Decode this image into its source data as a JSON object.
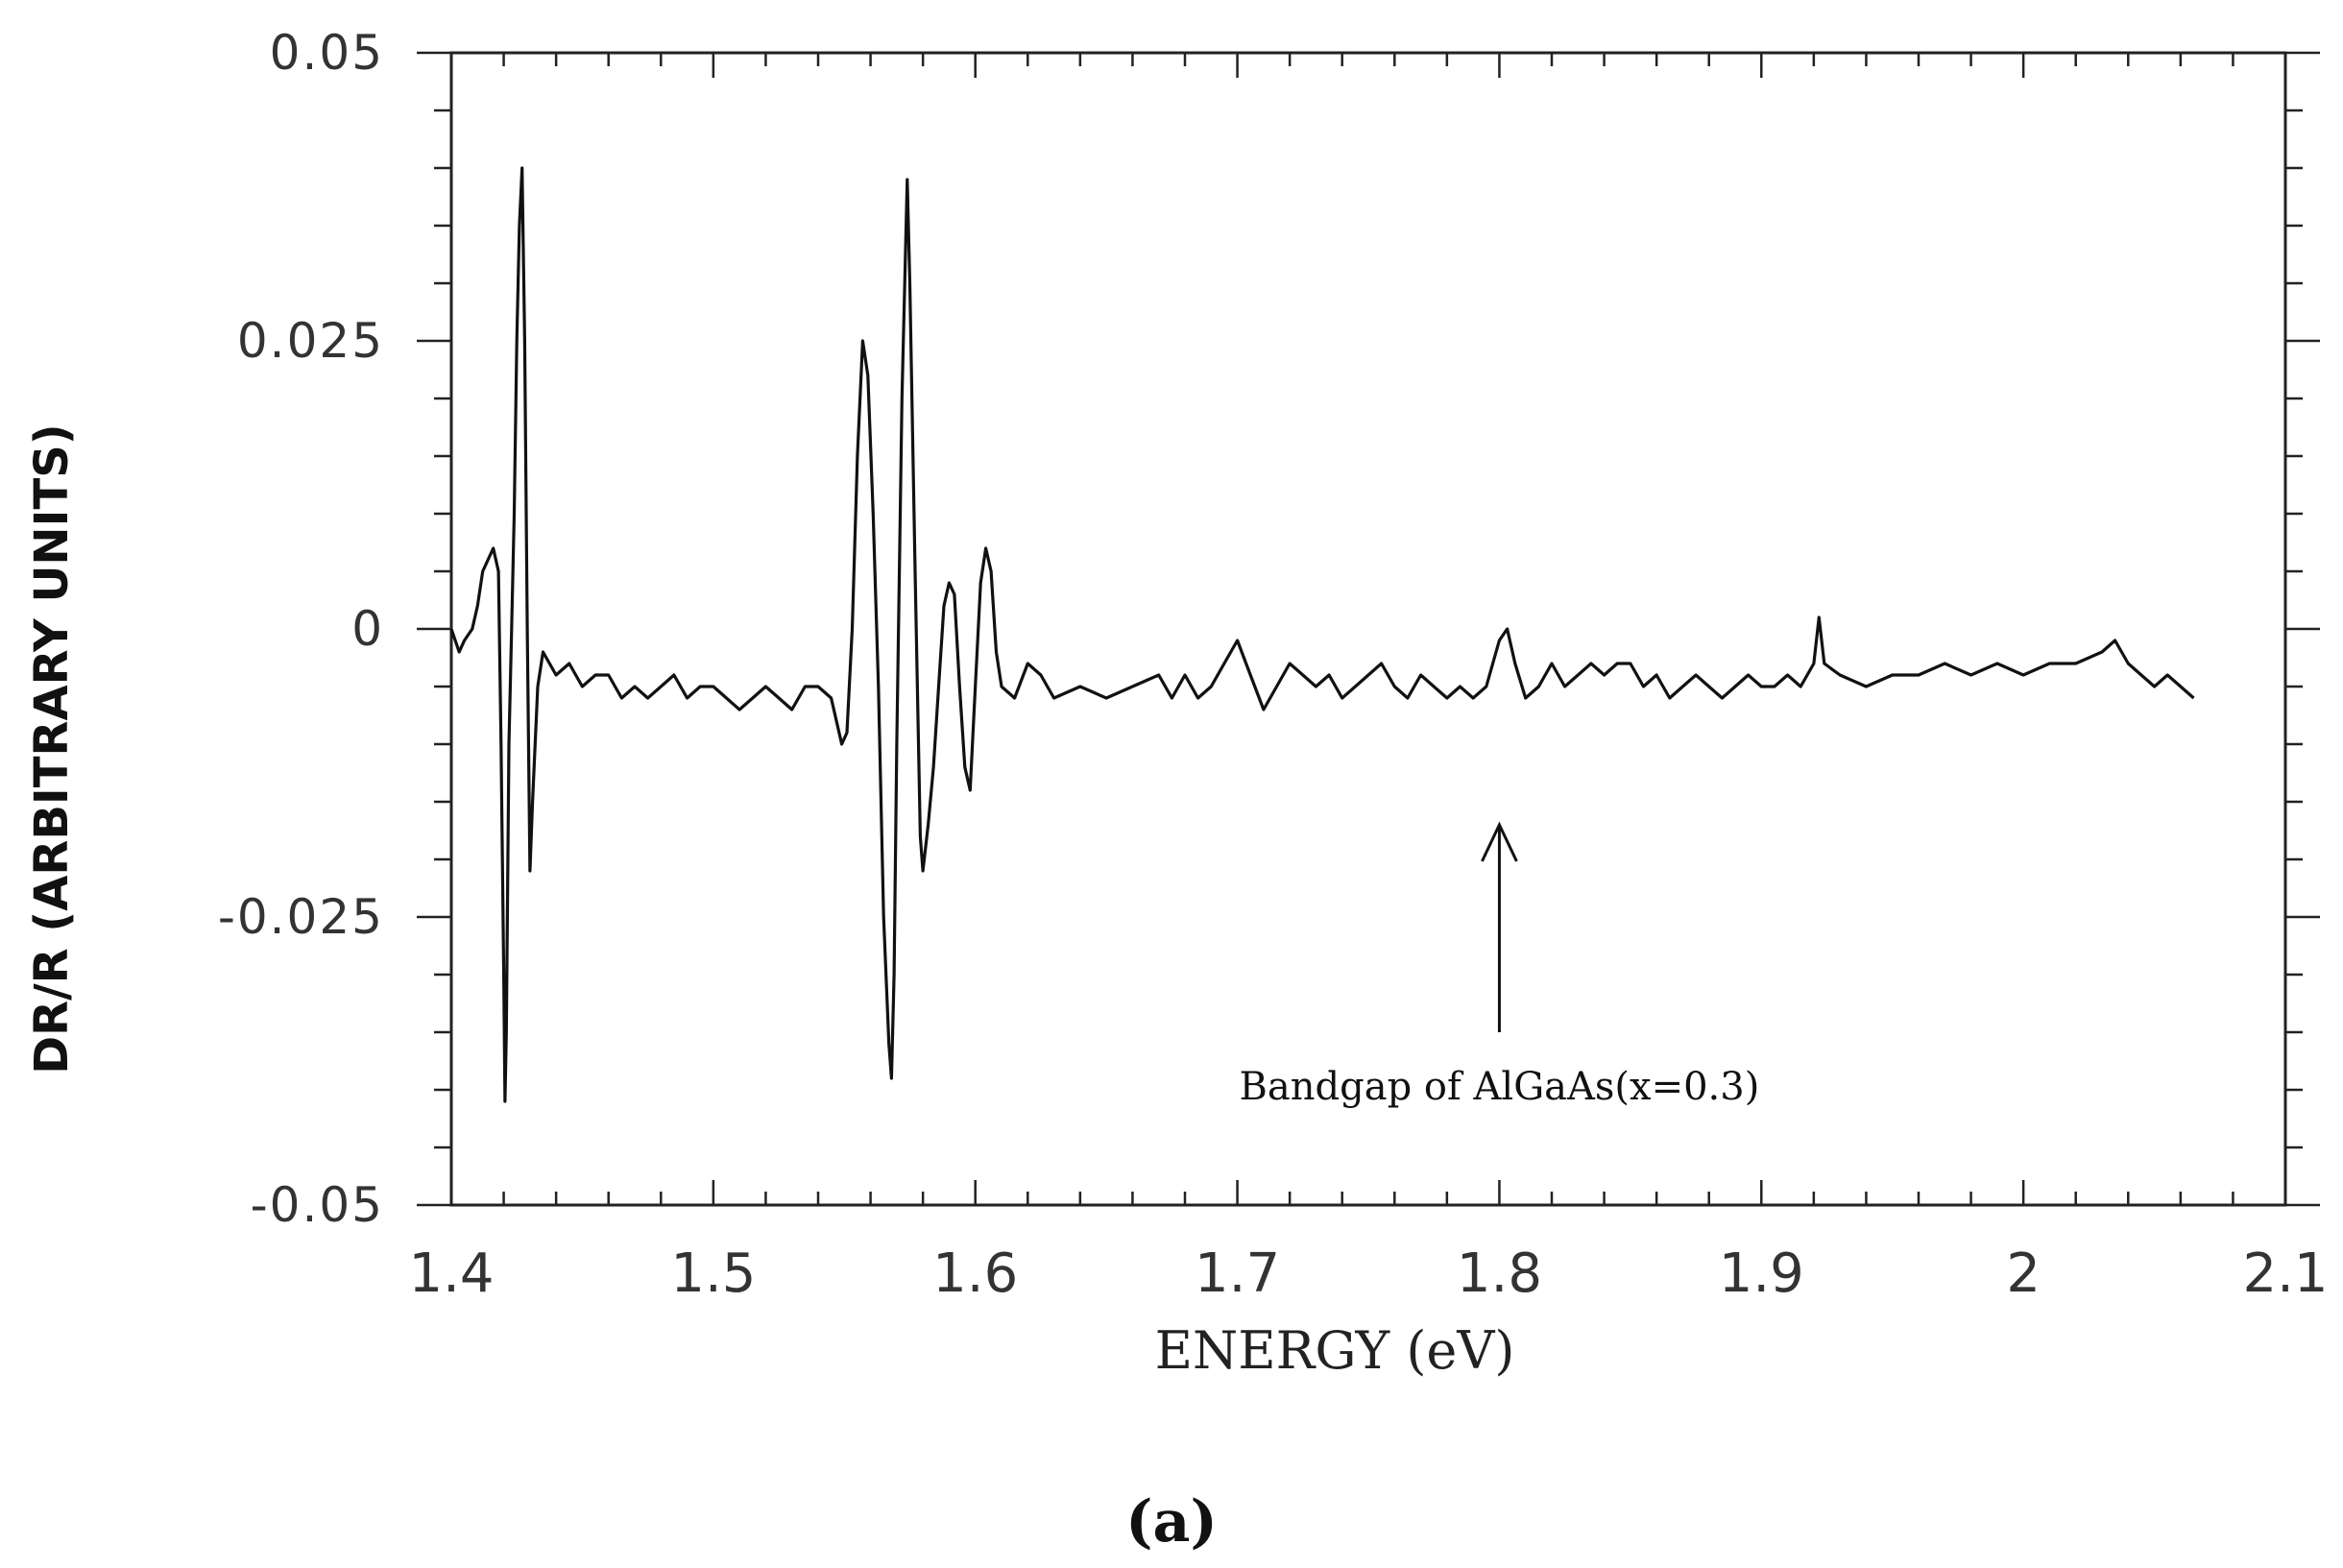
{
  "chart_data": {
    "type": "line",
    "xlabel": "ENERGY (eV)",
    "ylabel": "DR/R (ARBITRARY UNITS)",
    "xlim": [
      1.4,
      2.1
    ],
    "ylim": [
      -0.05,
      0.05
    ],
    "x_ticks": [
      "1.4",
      "1.5",
      "1.6",
      "1.7",
      "1.8",
      "1.9",
      "2",
      "2.1"
    ],
    "y_ticks": [
      "0.05",
      "0.025",
      "0",
      "-0.025",
      "-0.05"
    ],
    "grid": false,
    "legend": "none",
    "series": [
      {
        "color": "#111111",
        "points": [
          [
            1.4,
            0.0
          ],
          [
            1.403,
            -0.002
          ],
          [
            1.405,
            -0.001
          ],
          [
            1.408,
            0.0
          ],
          [
            1.41,
            0.002
          ],
          [
            1.412,
            0.005
          ],
          [
            1.414,
            0.006
          ],
          [
            1.416,
            0.007
          ],
          [
            1.418,
            0.005
          ],
          [
            1.419,
            -0.01
          ],
          [
            1.42,
            -0.03
          ],
          [
            1.4205,
            -0.041
          ],
          [
            1.421,
            -0.035
          ],
          [
            1.422,
            -0.01
          ],
          [
            1.423,
            0.0
          ],
          [
            1.424,
            0.01
          ],
          [
            1.425,
            0.025
          ],
          [
            1.426,
            0.035
          ],
          [
            1.427,
            0.04
          ],
          [
            1.428,
            0.025
          ],
          [
            1.429,
            0.0
          ],
          [
            1.43,
            -0.021
          ],
          [
            1.431,
            -0.015
          ],
          [
            1.433,
            -0.005
          ],
          [
            1.435,
            -0.002
          ],
          [
            1.44,
            -0.004
          ],
          [
            1.445,
            -0.003
          ],
          [
            1.45,
            -0.005
          ],
          [
            1.455,
            -0.004
          ],
          [
            1.46,
            -0.004
          ],
          [
            1.465,
            -0.006
          ],
          [
            1.47,
            -0.005
          ],
          [
            1.475,
            -0.006
          ],
          [
            1.48,
            -0.005
          ],
          [
            1.485,
            -0.004
          ],
          [
            1.49,
            -0.006
          ],
          [
            1.495,
            -0.005
          ],
          [
            1.5,
            -0.005
          ],
          [
            1.505,
            -0.006
          ],
          [
            1.51,
            -0.007
          ],
          [
            1.515,
            -0.006
          ],
          [
            1.52,
            -0.005
          ],
          [
            1.525,
            -0.006
          ],
          [
            1.53,
            -0.007
          ],
          [
            1.535,
            -0.005
          ],
          [
            1.54,
            -0.005
          ],
          [
            1.545,
            -0.006
          ],
          [
            1.549,
            -0.01
          ],
          [
            1.551,
            -0.009
          ],
          [
            1.553,
            0.0
          ],
          [
            1.555,
            0.015
          ],
          [
            1.557,
            0.025
          ],
          [
            1.559,
            0.022
          ],
          [
            1.561,
            0.01
          ],
          [
            1.563,
            -0.005
          ],
          [
            1.565,
            -0.025
          ],
          [
            1.567,
            -0.036
          ],
          [
            1.568,
            -0.039
          ],
          [
            1.569,
            -0.03
          ],
          [
            1.57,
            -0.01
          ],
          [
            1.572,
            0.02
          ],
          [
            1.574,
            0.039
          ],
          [
            1.575,
            0.03
          ],
          [
            1.577,
            0.005
          ],
          [
            1.579,
            -0.018
          ],
          [
            1.58,
            -0.021
          ],
          [
            1.582,
            -0.017
          ],
          [
            1.584,
            -0.012
          ],
          [
            1.586,
            -0.005
          ],
          [
            1.588,
            0.002
          ],
          [
            1.59,
            0.004
          ],
          [
            1.592,
            0.003
          ],
          [
            1.594,
            -0.005
          ],
          [
            1.596,
            -0.012
          ],
          [
            1.598,
            -0.014
          ],
          [
            1.6,
            -0.005
          ],
          [
            1.602,
            0.004
          ],
          [
            1.604,
            0.007
          ],
          [
            1.606,
            0.005
          ],
          [
            1.608,
            -0.002
          ],
          [
            1.61,
            -0.005
          ],
          [
            1.615,
            -0.006
          ],
          [
            1.62,
            -0.003
          ],
          [
            1.625,
            -0.004
          ],
          [
            1.63,
            -0.006
          ],
          [
            1.64,
            -0.005
          ],
          [
            1.65,
            -0.006
          ],
          [
            1.66,
            -0.005
          ],
          [
            1.67,
            -0.004
          ],
          [
            1.675,
            -0.006
          ],
          [
            1.68,
            -0.004
          ],
          [
            1.685,
            -0.006
          ],
          [
            1.69,
            -0.005
          ],
          [
            1.695,
            -0.003
          ],
          [
            1.7,
            -0.001
          ],
          [
            1.705,
            -0.004
          ],
          [
            1.71,
            -0.007
          ],
          [
            1.715,
            -0.005
          ],
          [
            1.72,
            -0.003
          ],
          [
            1.725,
            -0.004
          ],
          [
            1.73,
            -0.005
          ],
          [
            1.735,
            -0.004
          ],
          [
            1.74,
            -0.006
          ],
          [
            1.745,
            -0.005
          ],
          [
            1.75,
            -0.004
          ],
          [
            1.755,
            -0.003
          ],
          [
            1.76,
            -0.005
          ],
          [
            1.765,
            -0.006
          ],
          [
            1.77,
            -0.004
          ],
          [
            1.775,
            -0.005
          ],
          [
            1.78,
            -0.006
          ],
          [
            1.785,
            -0.005
          ],
          [
            1.79,
            -0.006
          ],
          [
            1.795,
            -0.005
          ],
          [
            1.8,
            -0.001
          ],
          [
            1.803,
            0.0
          ],
          [
            1.806,
            -0.003
          ],
          [
            1.81,
            -0.006
          ],
          [
            1.815,
            -0.005
          ],
          [
            1.82,
            -0.003
          ],
          [
            1.825,
            -0.005
          ],
          [
            1.83,
            -0.004
          ],
          [
            1.835,
            -0.003
          ],
          [
            1.84,
            -0.004
          ],
          [
            1.845,
            -0.003
          ],
          [
            1.85,
            -0.003
          ],
          [
            1.855,
            -0.005
          ],
          [
            1.86,
            -0.004
          ],
          [
            1.865,
            -0.006
          ],
          [
            1.87,
            -0.005
          ],
          [
            1.875,
            -0.004
          ],
          [
            1.88,
            -0.005
          ],
          [
            1.885,
            -0.006
          ],
          [
            1.89,
            -0.005
          ],
          [
            1.895,
            -0.004
          ],
          [
            1.9,
            -0.005
          ],
          [
            1.905,
            -0.005
          ],
          [
            1.91,
            -0.004
          ],
          [
            1.915,
            -0.005
          ],
          [
            1.92,
            -0.003
          ],
          [
            1.922,
            0.001
          ],
          [
            1.924,
            -0.003
          ],
          [
            1.93,
            -0.004
          ],
          [
            1.94,
            -0.005
          ],
          [
            1.95,
            -0.004
          ],
          [
            1.96,
            -0.004
          ],
          [
            1.97,
            -0.003
          ],
          [
            1.98,
            -0.004
          ],
          [
            1.99,
            -0.003
          ],
          [
            2.0,
            -0.004
          ],
          [
            2.01,
            -0.003
          ],
          [
            2.02,
            -0.003
          ],
          [
            2.03,
            -0.002
          ],
          [
            2.035,
            -0.001
          ],
          [
            2.04,
            -0.003
          ],
          [
            2.045,
            -0.004
          ],
          [
            2.05,
            -0.005
          ],
          [
            2.055,
            -0.004
          ],
          [
            2.06,
            -0.005
          ],
          [
            2.065,
            -0.006
          ]
        ]
      }
    ],
    "annotations": [
      {
        "text": "Bandgap of AlGaAs(x=0.3)",
        "x": 1.8,
        "y": -0.035,
        "arrow_to": [
          1.8,
          -0.017
        ]
      }
    ],
    "caption": "(a)"
  }
}
